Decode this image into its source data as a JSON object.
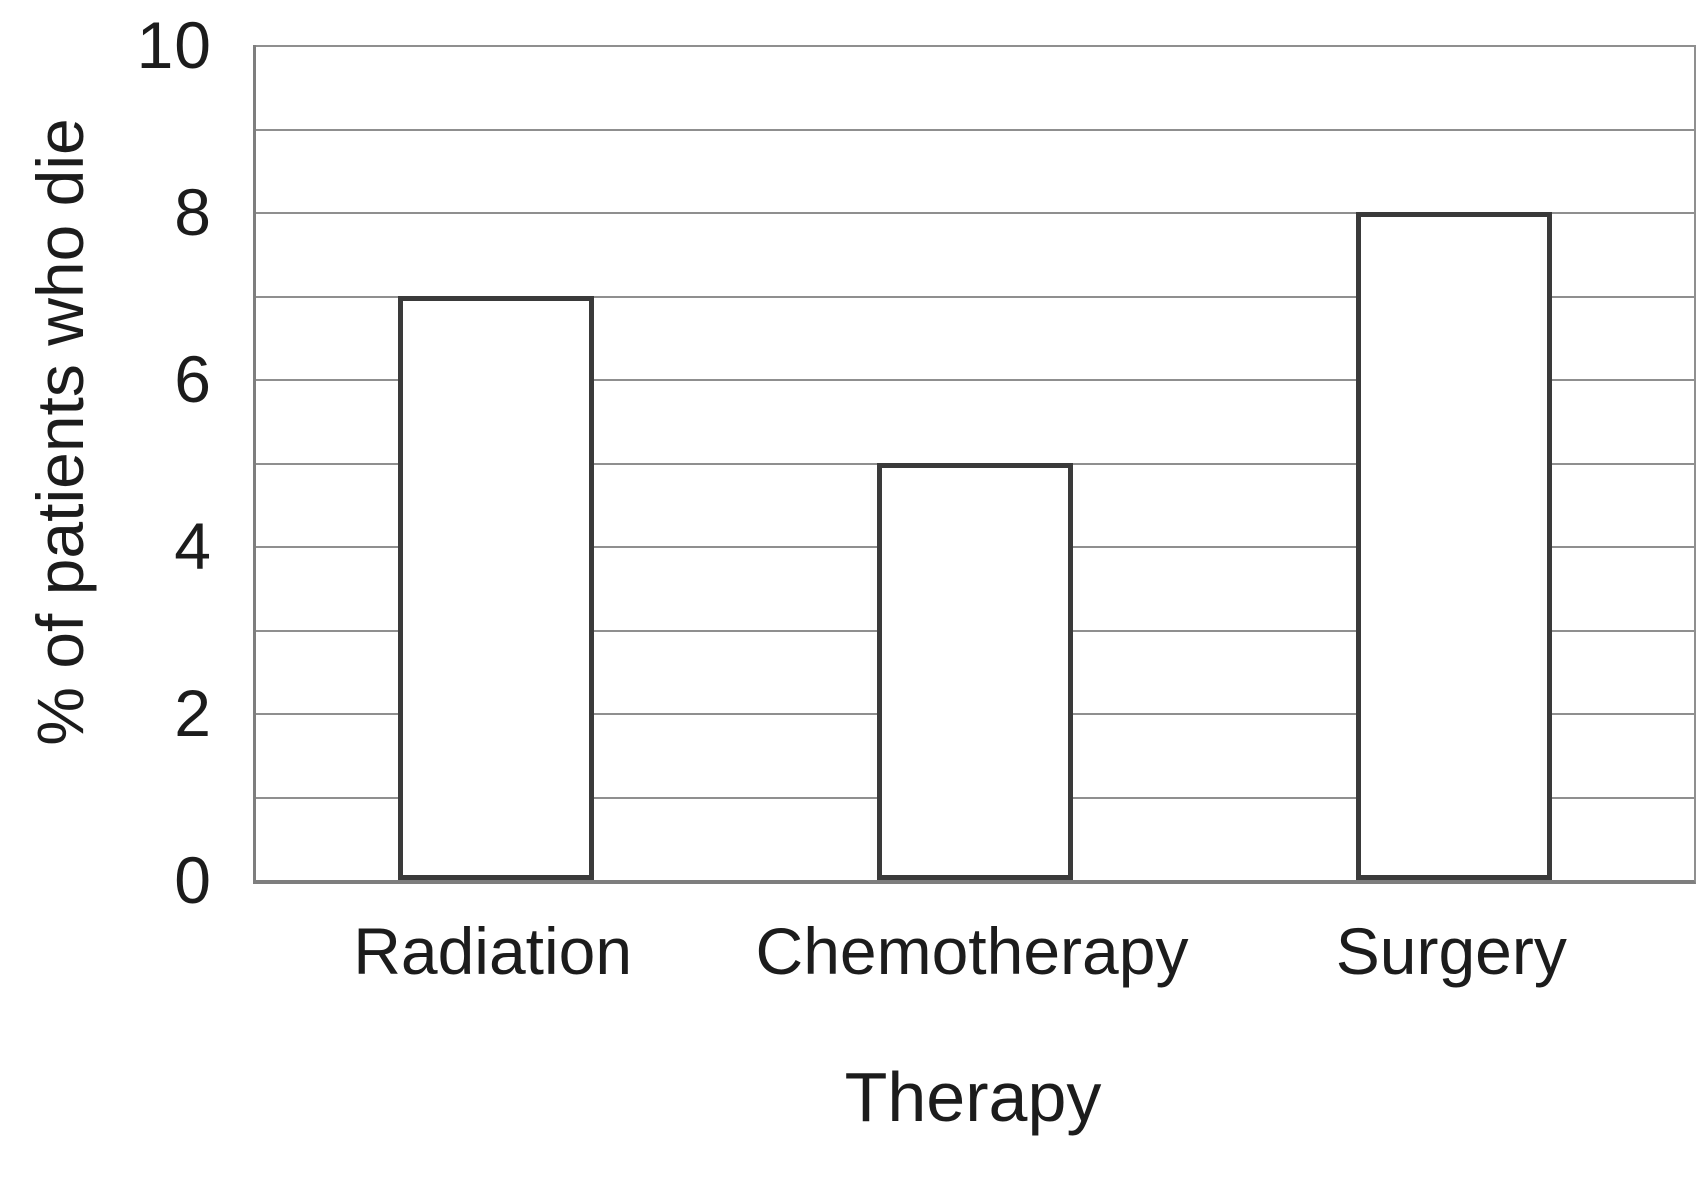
{
  "chart_data": {
    "type": "bar",
    "categories": [
      "Radiation",
      "Chemotherapy",
      "Surgery"
    ],
    "values": [
      7,
      5,
      8
    ],
    "title": "",
    "xlabel": "Therapy",
    "ylabel": "% of patients who die",
    "ylim": [
      0,
      10
    ],
    "yticks": [
      0,
      2,
      4,
      6,
      8,
      10
    ],
    "gridline_interval": 1,
    "grid": "horizontal-only",
    "legend_position": "none",
    "colors": {
      "background": "#ffffff",
      "bar_fill": "#ffffff",
      "bar_border": "#3a3a3a",
      "gridline": "#8f8f8f",
      "axis": "#7e7e7e",
      "text": "#1c1c1c"
    }
  }
}
